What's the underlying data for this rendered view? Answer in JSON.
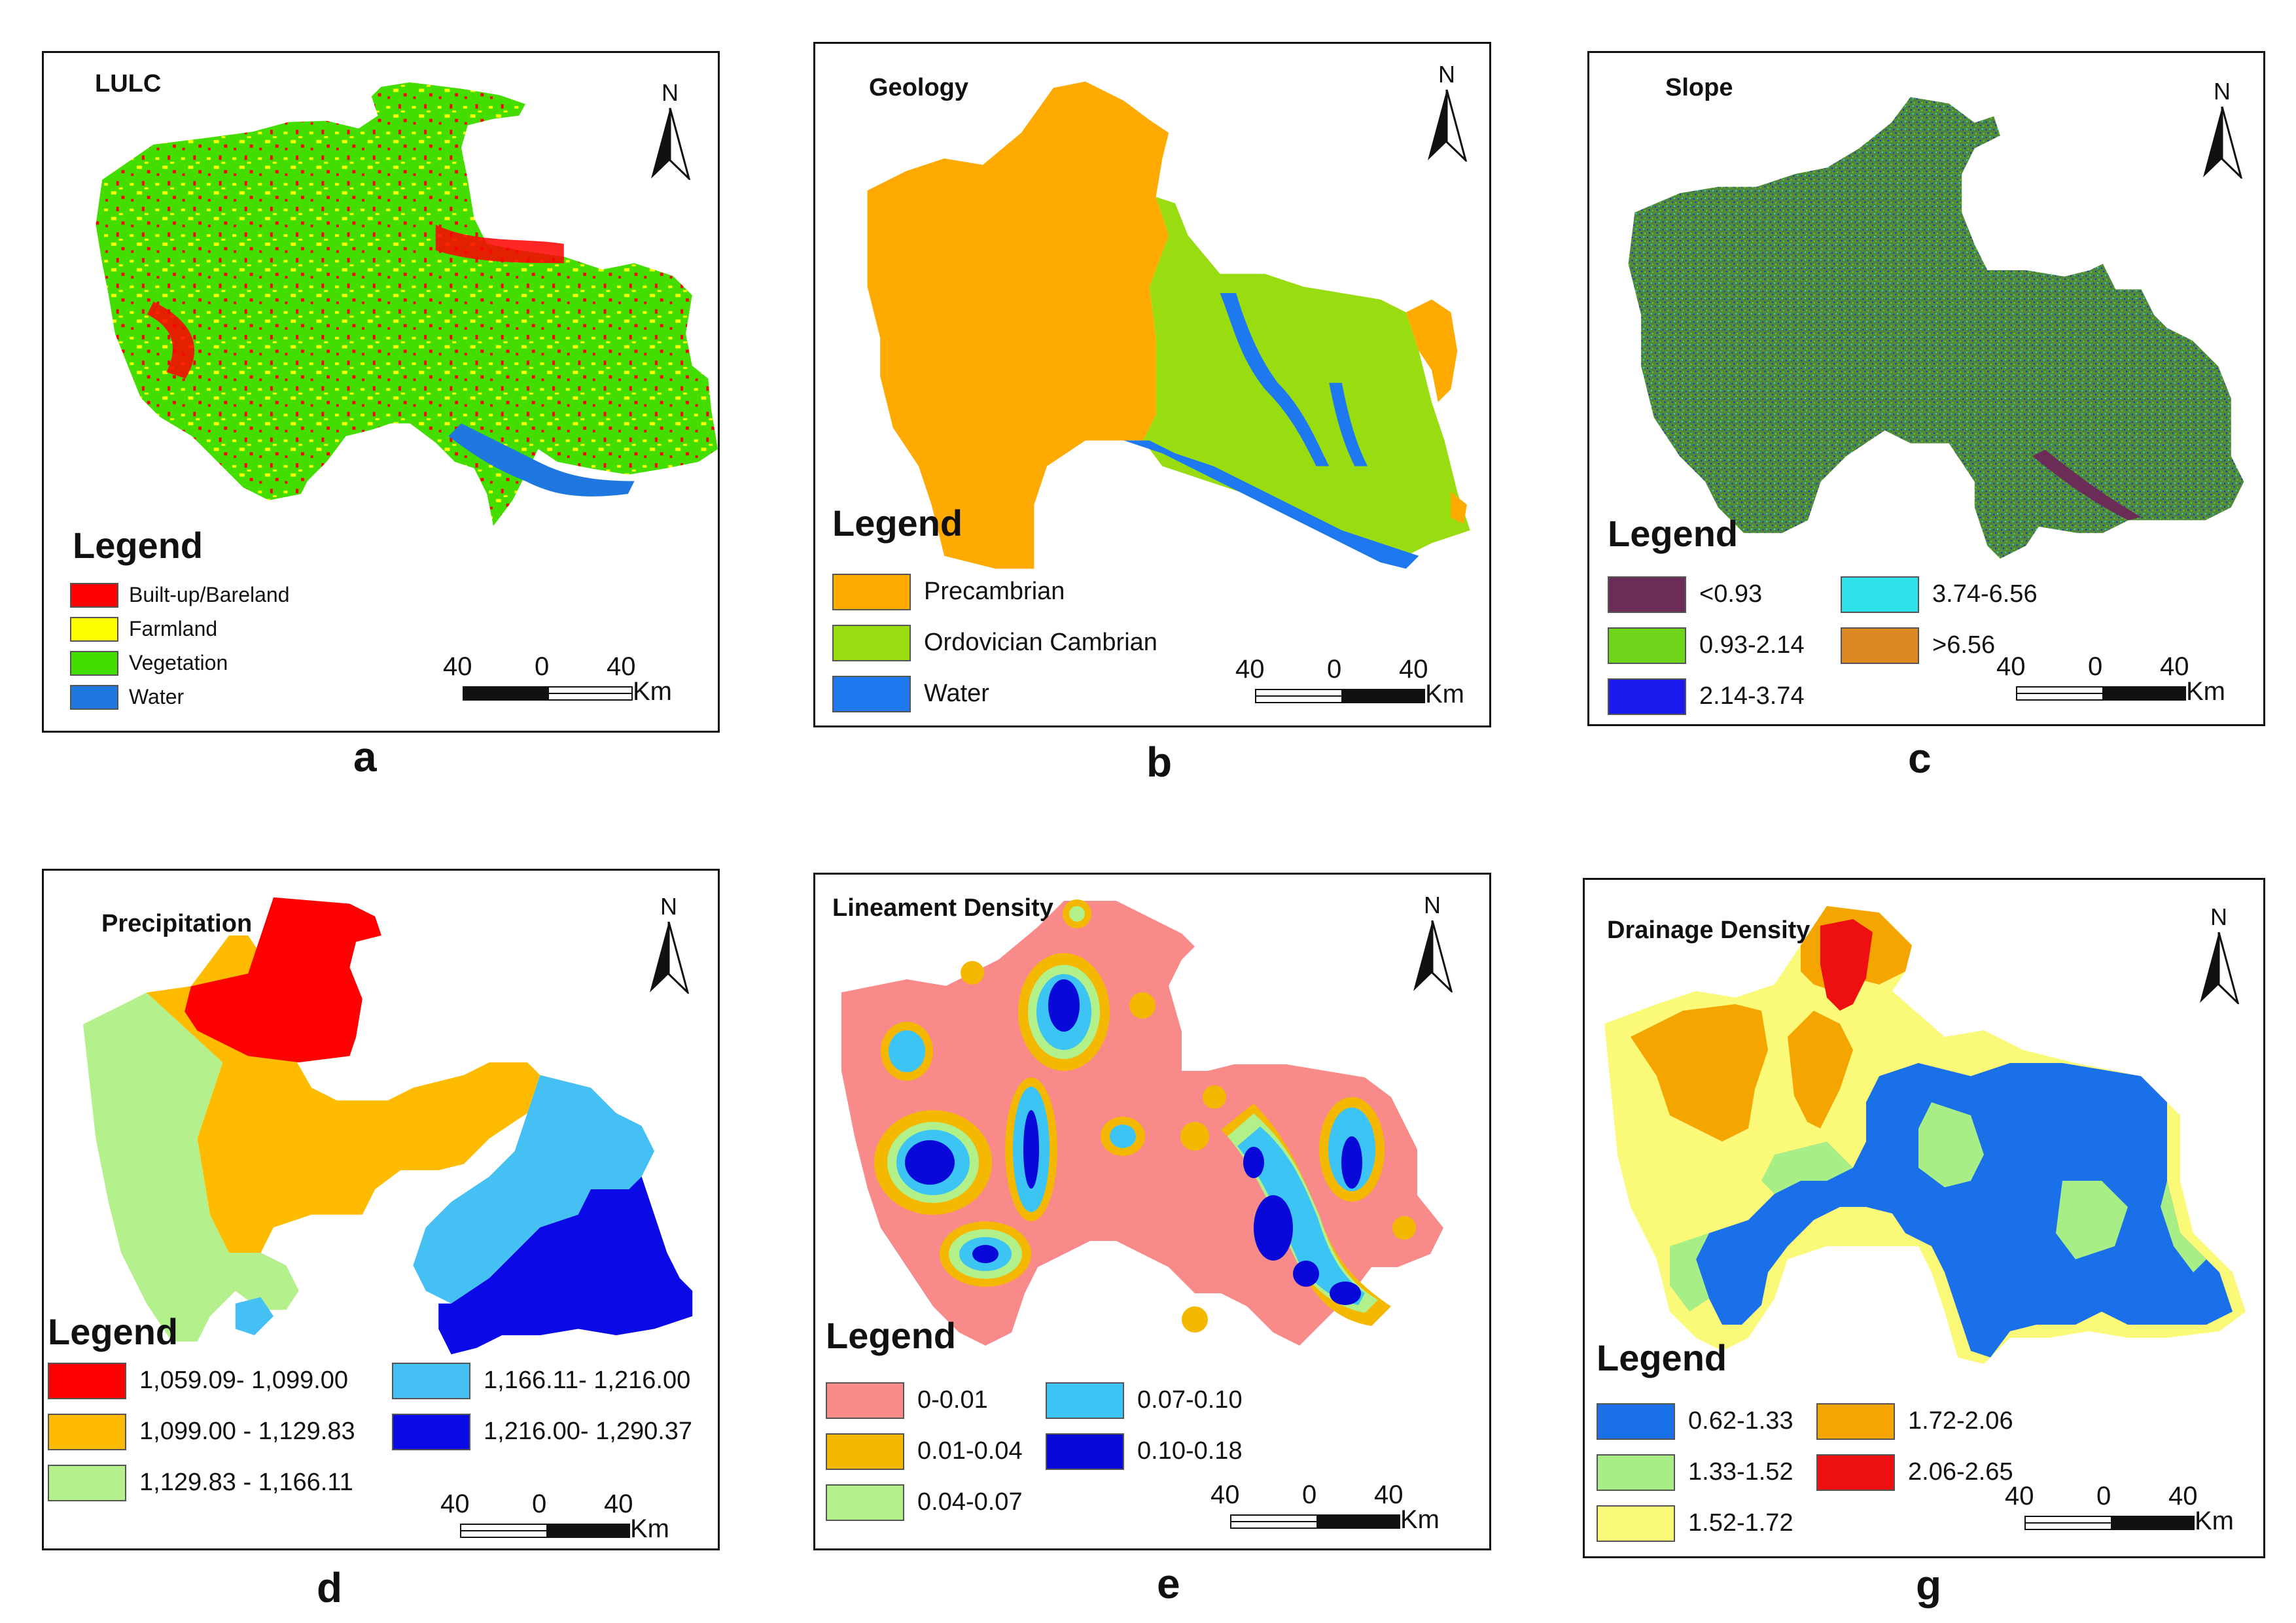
{
  "north_label": "N",
  "legend_title": "Legend",
  "scale": {
    "left": "40",
    "mid": "0",
    "right": "40",
    "unit": "Km"
  },
  "panels": {
    "a": {
      "title": "LULC",
      "label": "a",
      "legend": [
        {
          "color": "#ff0000",
          "label": "Built-up/Bareland"
        },
        {
          "color": "#ffff00",
          "label": "Farmland"
        },
        {
          "color": "#44dd00",
          "label": "Vegetation"
        },
        {
          "color": "#1f77e0",
          "label": "Water"
        }
      ]
    },
    "b": {
      "title": "Geology",
      "label": "b",
      "legend": [
        {
          "color": "#ffaa00",
          "label": "Precambrian"
        },
        {
          "color": "#99dd11",
          "label": "Ordovician Cambrian"
        },
        {
          "color": "#1e78f0",
          "label": "Water"
        }
      ]
    },
    "c": {
      "title": "Slope",
      "label": "c",
      "legend": [
        {
          "color": "#6b2d57",
          "label": "<0.93"
        },
        {
          "color": "#6fd51a",
          "label": "0.93-2.14"
        },
        {
          "color": "#1a1aee",
          "label": "2.14-3.74"
        },
        {
          "color": "#2ee0e8",
          "label": "3.74-6.56"
        },
        {
          "color": "#dd8820",
          "label": ">6.56"
        }
      ]
    },
    "d": {
      "title": "Precipitation",
      "label": "d",
      "legend": [
        {
          "color": "#ff0000",
          "label": "1,059.09- 1,099.00"
        },
        {
          "color": "#ffbb00",
          "label": "1,099.00 - 1,129.83"
        },
        {
          "color": "#b4f08c",
          "label": "1,129.83 - 1,166.11"
        },
        {
          "color": "#44c0f5",
          "label": "1,166.11- 1,216.00"
        },
        {
          "color": "#0a0ae6",
          "label": "1,216.00- 1,290.37"
        }
      ]
    },
    "e": {
      "title": "Lineament Density",
      "label": "e",
      "legend": [
        {
          "color": "#f88a8a",
          "label": "0-0.01"
        },
        {
          "color": "#f5b800",
          "label": "0.01-0.04"
        },
        {
          "color": "#b2f08a",
          "label": "0.04-0.07"
        },
        {
          "color": "#3cc4f5",
          "label": "0.07-0.10"
        },
        {
          "color": "#0808d8",
          "label": "0.10-0.18"
        }
      ]
    },
    "g": {
      "title": "Drainage Density",
      "label": "g",
      "legend": [
        {
          "color": "#1a70e8",
          "label": "0.62-1.33"
        },
        {
          "color": "#a8ee86",
          "label": "1.33-1.52"
        },
        {
          "color": "#fafa78",
          "label": "1.52-1.72"
        },
        {
          "color": "#f5a500",
          "label": "1.72-2.06"
        },
        {
          "color": "#ee1010",
          "label": "2.06-2.65"
        }
      ]
    }
  }
}
